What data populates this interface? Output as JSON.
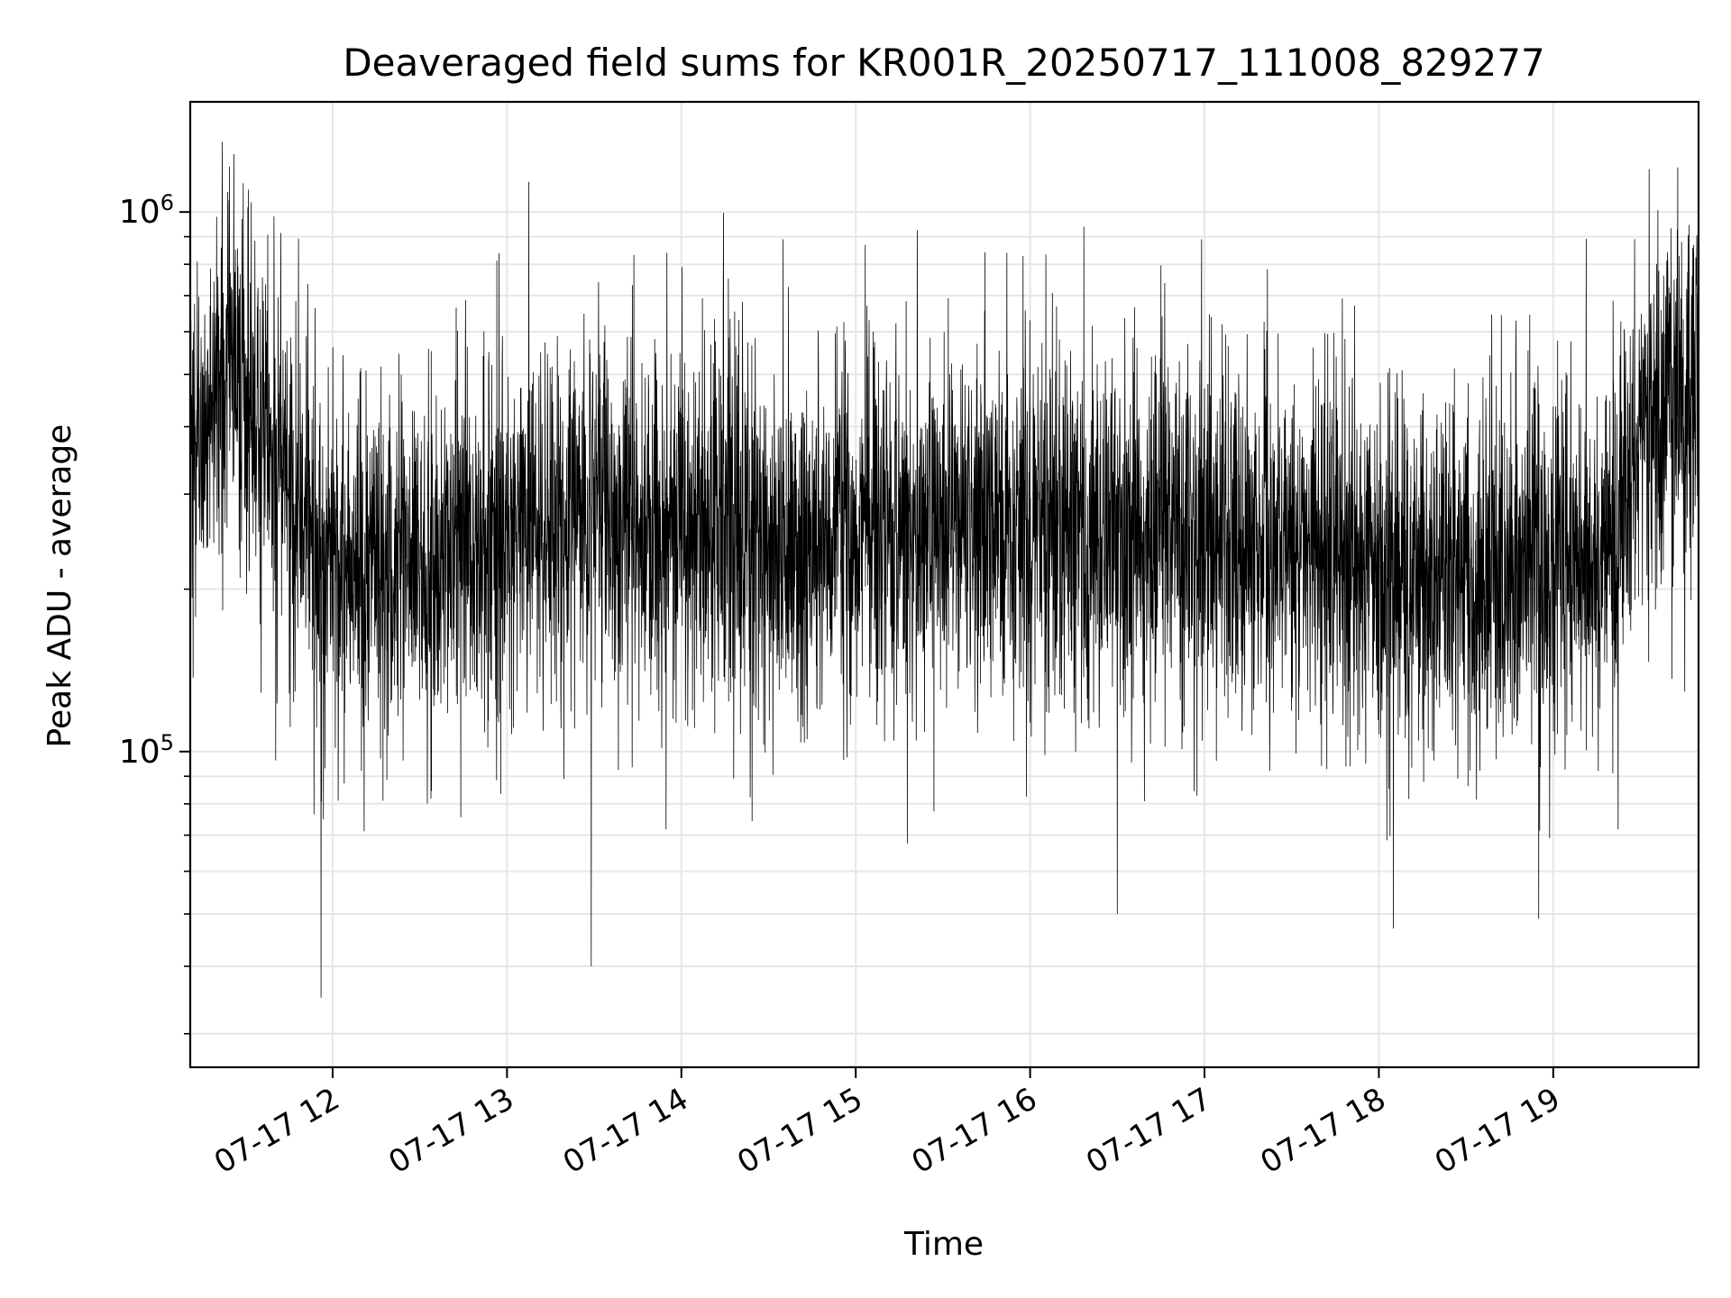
{
  "colors": {
    "background": "#ffffff",
    "line": "#000000",
    "grid": "#e6e6e6",
    "axes": "#000000"
  },
  "chart_data": {
    "type": "line",
    "title": "Deaveraged field sums for KR001R_20250717_111008_829277",
    "xlabel": "Time",
    "ylabel": "Peak ADU - average",
    "yscale": "log",
    "grid": true,
    "minor_grid": true,
    "xlim": [
      "2025-07-17 11:11",
      "2025-07-17 19:50"
    ],
    "ylim": [
      26000,
      1600000
    ],
    "x_ticks": [
      {
        "value": "2025-07-17 12:00",
        "label": "07-17 12"
      },
      {
        "value": "2025-07-17 13:00",
        "label": "07-17 13"
      },
      {
        "value": "2025-07-17 14:00",
        "label": "07-17 14"
      },
      {
        "value": "2025-07-17 15:00",
        "label": "07-17 15"
      },
      {
        "value": "2025-07-17 16:00",
        "label": "07-17 16"
      },
      {
        "value": "2025-07-17 17:00",
        "label": "07-17 17"
      },
      {
        "value": "2025-07-17 18:00",
        "label": "07-17 18"
      },
      {
        "value": "2025-07-17 19:00",
        "label": "07-17 19"
      }
    ],
    "y_ticks": [
      {
        "value": 100000,
        "base": "10",
        "exp": "5"
      },
      {
        "value": 1000000,
        "base": "10",
        "exp": "6"
      }
    ],
    "series": [
      {
        "color": "#000000",
        "line_width": 0.8,
        "sampling_interval_seconds": 5,
        "x_start": "2025-07-17 11:11",
        "x_end": "2025-07-17 19:50",
        "envelope": {
          "x": [
            "2025-07-17 11:11",
            "2025-07-17 11:20",
            "2025-07-17 11:25",
            "2025-07-17 11:35",
            "2025-07-17 11:45",
            "2025-07-17 12:00",
            "2025-07-17 12:15",
            "2025-07-17 12:40",
            "2025-07-17 13:00",
            "2025-07-17 13:30",
            "2025-07-17 14:00",
            "2025-07-17 14:30",
            "2025-07-17 15:00",
            "2025-07-17 15:30",
            "2025-07-17 16:00",
            "2025-07-17 16:30",
            "2025-07-17 17:00",
            "2025-07-17 17:30",
            "2025-07-17 17:50",
            "2025-07-17 18:00",
            "2025-07-17 18:30",
            "2025-07-17 19:00",
            "2025-07-17 19:20",
            "2025-07-17 19:25",
            "2025-07-17 19:30",
            "2025-07-17 19:40",
            "2025-07-17 19:50"
          ],
          "median": [
            340000,
            450000,
            560000,
            380000,
            300000,
            220000,
            230000,
            240000,
            260000,
            270000,
            260000,
            250000,
            260000,
            265000,
            270000,
            255000,
            250000,
            245000,
            230000,
            210000,
            210000,
            215000,
            230000,
            300000,
            390000,
            430000,
            450000
          ]
        },
        "highlights": [
          {
            "x": "2025-07-17 11:22",
            "y": 1350000
          },
          {
            "x": "2025-07-17 11:26",
            "y": 1280000
          },
          {
            "x": "2025-07-17 11:31",
            "y": 1100000
          },
          {
            "x": "2025-07-17 11:56",
            "y": 35000
          },
          {
            "x": "2025-07-17 13:29",
            "y": 40000
          },
          {
            "x": "2025-07-17 13:55",
            "y": 840000
          },
          {
            "x": "2025-07-17 14:35",
            "y": 890000
          },
          {
            "x": "2025-07-17 15:52",
            "y": 840000
          },
          {
            "x": "2025-07-17 16:30",
            "y": 50000
          },
          {
            "x": "2025-07-17 16:59",
            "y": 890000
          },
          {
            "x": "2025-07-17 18:05",
            "y": 47000
          },
          {
            "x": "2025-07-17 18:55",
            "y": 49000
          },
          {
            "x": "2025-07-17 19:33",
            "y": 1200000
          }
        ]
      }
    ]
  }
}
